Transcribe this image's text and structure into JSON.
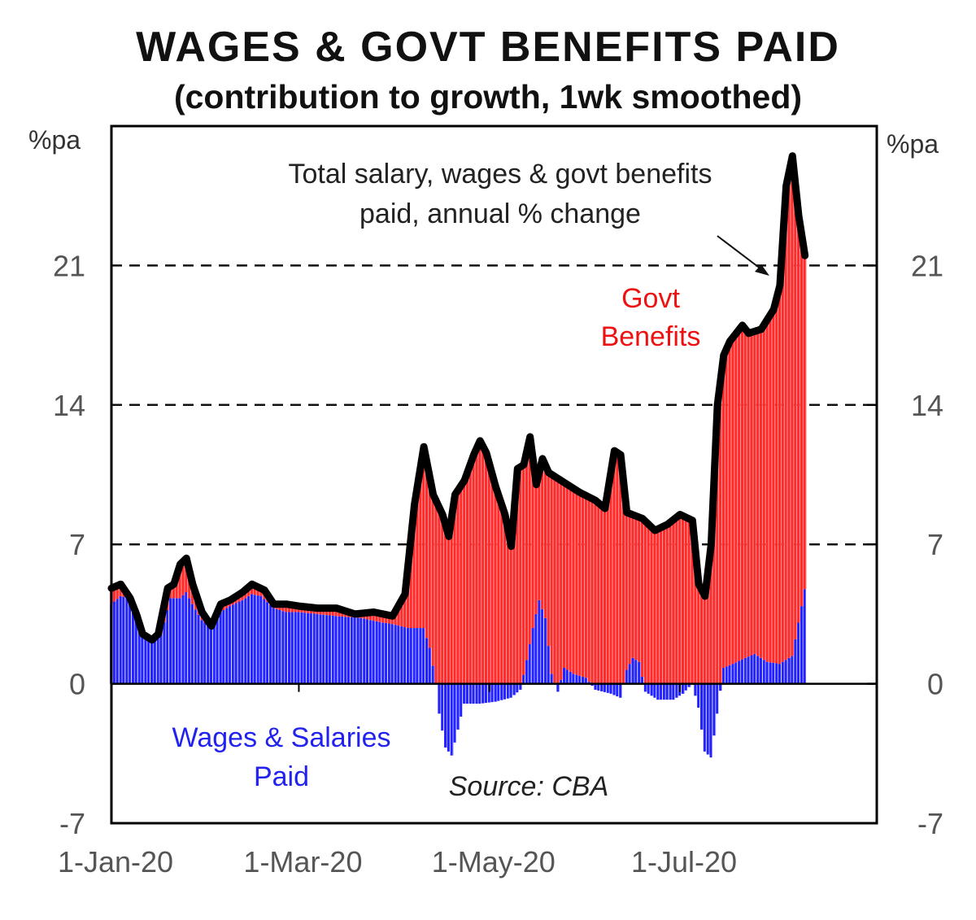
{
  "chart_data": {
    "type": "bar",
    "title": "WAGES & GOVT BENEFITS PAID",
    "subtitle": "(contribution to growth, 1wk smoothed)",
    "y_unit_left": "%pa",
    "y_unit_right": "%pa",
    "ylim": [
      -7,
      28
    ],
    "y_ticks": [
      -7,
      0,
      7,
      14,
      21
    ],
    "y_tick_labels": [
      "-7",
      "0",
      "7",
      "14",
      "21"
    ],
    "dashed_gridlines": [
      7,
      14,
      21
    ],
    "x_tick_labels": [
      "1-Jan-20",
      "1-Mar-20",
      "1-May-20",
      "1-Jul-20"
    ],
    "x_tick_days": [
      0,
      60,
      121,
      182
    ],
    "xlim_days": [
      0,
      245
    ],
    "x_date_start": "1-Jan-20",
    "stacked": true,
    "series": [
      {
        "name": "Wages & Salaries Paid",
        "kind": "bar",
        "color": "#2222ff",
        "points": [
          [
            0,
            4.0
          ],
          [
            3,
            4.4
          ],
          [
            6,
            4.3
          ],
          [
            9,
            3.2
          ],
          [
            11,
            2.3
          ],
          [
            14,
            2.2
          ],
          [
            16,
            2.5
          ],
          [
            19,
            4.3
          ],
          [
            22,
            4.3
          ],
          [
            24,
            4.6
          ],
          [
            26,
            4.0
          ],
          [
            29,
            3.2
          ],
          [
            32,
            2.8
          ],
          [
            35,
            3.6
          ],
          [
            38,
            3.9
          ],
          [
            42,
            4.2
          ],
          [
            45,
            4.5
          ],
          [
            48,
            4.4
          ],
          [
            52,
            3.8
          ],
          [
            56,
            3.6
          ],
          [
            60,
            3.6
          ],
          [
            66,
            3.5
          ],
          [
            72,
            3.4
          ],
          [
            80,
            3.3
          ],
          [
            86,
            3.1
          ],
          [
            90,
            3.0
          ],
          [
            95,
            2.8
          ],
          [
            100,
            2.8
          ],
          [
            102,
            1.8
          ],
          [
            104,
            0
          ],
          [
            105,
            -1.5
          ],
          [
            107,
            -3.2
          ],
          [
            109,
            -3.6
          ],
          [
            111,
            -2.3
          ],
          [
            113,
            -1.0
          ],
          [
            118,
            -1.0
          ],
          [
            123,
            -0.9
          ],
          [
            128,
            -0.7
          ],
          [
            131,
            -0.3
          ],
          [
            133,
            1.2
          ],
          [
            135,
            2.8
          ],
          [
            137,
            4.2
          ],
          [
            139,
            3.3
          ],
          [
            141,
            0.5
          ],
          [
            143,
            -0.4
          ],
          [
            145,
            0.8
          ],
          [
            148,
            0.5
          ],
          [
            152,
            0.3
          ],
          [
            155,
            -0.3
          ],
          [
            160,
            -0.5
          ],
          [
            163,
            -0.7
          ],
          [
            165,
            0.7
          ],
          [
            167,
            1.3
          ],
          [
            169,
            1.1
          ],
          [
            171,
            -0.4
          ],
          [
            175,
            -0.8
          ],
          [
            180,
            -0.8
          ],
          [
            183,
            -0.5
          ],
          [
            186,
            0
          ],
          [
            188,
            -1.2
          ],
          [
            190,
            -3.4
          ],
          [
            192,
            -3.7
          ],
          [
            194,
            -1.5
          ],
          [
            196,
            0.8
          ],
          [
            199,
            1.0
          ],
          [
            203,
            1.3
          ],
          [
            206,
            1.5
          ],
          [
            210,
            1.1
          ],
          [
            214,
            1.0
          ],
          [
            218,
            1.4
          ],
          [
            221,
            3.9
          ],
          [
            223,
            5.6
          ],
          [
            225,
            5.3
          ],
          [
            227,
            4.7
          ]
        ]
      },
      {
        "name": "Govt Benefits",
        "kind": "bar",
        "color": "#ff2a2a",
        "total_minus_wages": true
      },
      {
        "name": "Total salary, wages & govt benefits paid, annual % change",
        "kind": "line",
        "color": "#000000",
        "points": [
          [
            0,
            4.8
          ],
          [
            3,
            5.0
          ],
          [
            6,
            4.3
          ],
          [
            8,
            3.5
          ],
          [
            10,
            2.5
          ],
          [
            13,
            2.2
          ],
          [
            15,
            2.5
          ],
          [
            18,
            4.8
          ],
          [
            20,
            5.0
          ],
          [
            22,
            6.0
          ],
          [
            24,
            6.3
          ],
          [
            26,
            5.0
          ],
          [
            29,
            3.6
          ],
          [
            32,
            2.9
          ],
          [
            35,
            4.0
          ],
          [
            38,
            4.2
          ],
          [
            42,
            4.6
          ],
          [
            45,
            5.0
          ],
          [
            49,
            4.7
          ],
          [
            52,
            4.0
          ],
          [
            56,
            4.0
          ],
          [
            60,
            3.9
          ],
          [
            66,
            3.8
          ],
          [
            72,
            3.8
          ],
          [
            78,
            3.5
          ],
          [
            84,
            3.6
          ],
          [
            90,
            3.4
          ],
          [
            94,
            4.5
          ],
          [
            97,
            9.0
          ],
          [
            100,
            11.9
          ],
          [
            103,
            9.5
          ],
          [
            106,
            8.5
          ],
          [
            108,
            7.4
          ],
          [
            110,
            9.5
          ],
          [
            113,
            10.2
          ],
          [
            116,
            11.5
          ],
          [
            118,
            12.2
          ],
          [
            120,
            11.6
          ],
          [
            123,
            9.9
          ],
          [
            126,
            8.5
          ],
          [
            128,
            6.9
          ],
          [
            130,
            10.8
          ],
          [
            132,
            11.0
          ],
          [
            134,
            12.4
          ],
          [
            136,
            10.0
          ],
          [
            138,
            11.3
          ],
          [
            140,
            10.6
          ],
          [
            145,
            10.1
          ],
          [
            150,
            9.6
          ],
          [
            155,
            9.2
          ],
          [
            158,
            8.8
          ],
          [
            161,
            11.7
          ],
          [
            163,
            11.5
          ],
          [
            165,
            8.6
          ],
          [
            170,
            8.3
          ],
          [
            174,
            7.7
          ],
          [
            178,
            8.0
          ],
          [
            182,
            8.5
          ],
          [
            186,
            8.2
          ],
          [
            188,
            5.0
          ],
          [
            190,
            4.4
          ],
          [
            192,
            7.0
          ],
          [
            194,
            14.0
          ],
          [
            196,
            16.5
          ],
          [
            198,
            17.2
          ],
          [
            200,
            17.6
          ],
          [
            202,
            18.0
          ],
          [
            204,
            17.6
          ],
          [
            208,
            17.8
          ],
          [
            212,
            18.8
          ],
          [
            214,
            20.0
          ],
          [
            216,
            25.0
          ],
          [
            218,
            26.5
          ],
          [
            220,
            23.5
          ],
          [
            222,
            21.5
          ]
        ]
      }
    ],
    "annotations": {
      "total_label": "Total salary, wages & govt benefits paid, annual % change",
      "total_line1": "Total salary, wages & govt benefits",
      "total_line2": "paid, annual % change",
      "govt_line1": "Govt",
      "govt_line2": "Benefits",
      "wages_line1": "Wages & Salaries",
      "wages_line2": "Paid",
      "source": "Source: CBA"
    },
    "colors": {
      "wages": "#2222ff",
      "govt": "#ff2a2a",
      "total": "#000000",
      "axis": "#000000",
      "tick_text": "#555555"
    }
  }
}
